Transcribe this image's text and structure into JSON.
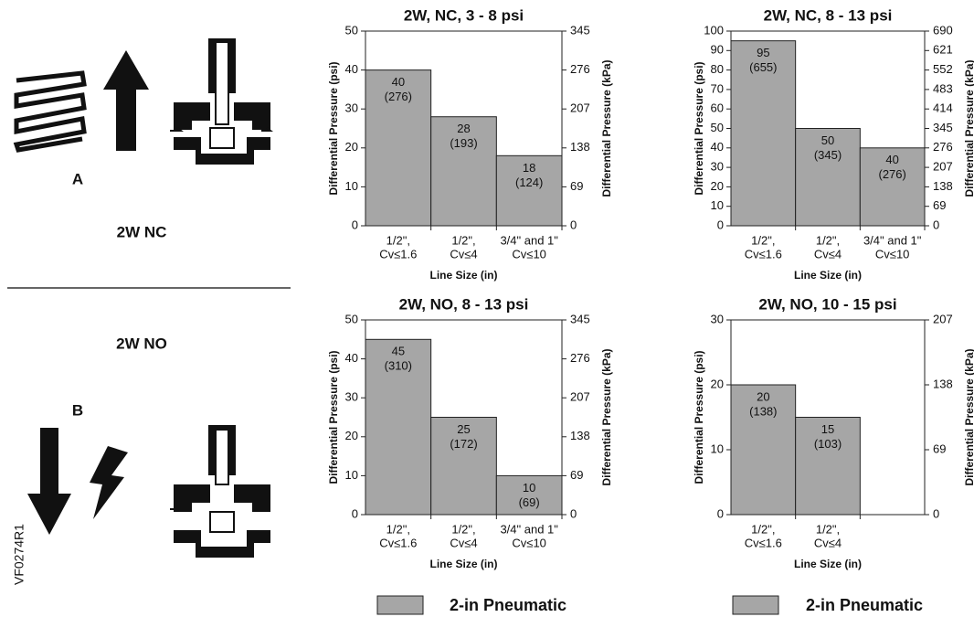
{
  "diagram": {
    "label_a": "A",
    "label_b": "B",
    "nc_title": "2W NC",
    "no_title": "2W NO",
    "figure_id": "VF0274R1"
  },
  "legends": [
    {
      "name": "2-in Pneumatic",
      "color": "#a6a6a6"
    },
    {
      "name": "2-in Pneumatic",
      "color": "#a6a6a6"
    }
  ],
  "chart_data": [
    {
      "type": "bar",
      "title": "2W, NC, 3 - 8 psi",
      "xlabel": "Line Size (in)",
      "ylabel": "Differential Pressure (psi)",
      "y2label": "Differential Pressure (kPa)",
      "categories": [
        [
          "1/2\",",
          "Cv≤1.6"
        ],
        [
          "1/2\",",
          "Cv≤4"
        ],
        [
          "3/4\" and 1\"",
          "Cv≤10"
        ]
      ],
      "values": [
        40,
        28,
        18
      ],
      "value_labels": [
        [
          "40",
          "(276)"
        ],
        [
          "28",
          "(193)"
        ],
        [
          "18",
          "(124)"
        ]
      ],
      "color": "#a6a6a6",
      "ylim": [
        0,
        50
      ],
      "yticks": [
        0,
        10,
        20,
        30,
        40,
        50
      ],
      "y2lim": [
        0,
        345
      ],
      "y2ticks": [
        0,
        69,
        138,
        207,
        276,
        345
      ]
    },
    {
      "type": "bar",
      "title": "2W, NC, 8 - 13 psi",
      "xlabel": "Line Size (in)",
      "ylabel": "Differential Pressure (psi)",
      "y2label": "Differential Pressure (kPa)",
      "categories": [
        [
          "1/2\",",
          "Cv≤1.6"
        ],
        [
          "1/2\",",
          "Cv≤4"
        ],
        [
          "3/4\" and 1\"",
          "Cv≤10"
        ]
      ],
      "values": [
        95,
        50,
        40
      ],
      "value_labels": [
        [
          "95",
          "(655)"
        ],
        [
          "50",
          "(345)"
        ],
        [
          "40",
          "(276)"
        ]
      ],
      "color": "#a6a6a6",
      "ylim": [
        0,
        100
      ],
      "yticks": [
        0,
        10,
        20,
        30,
        40,
        50,
        60,
        70,
        80,
        90,
        100
      ],
      "y2lim": [
        0,
        690
      ],
      "y2ticks": [
        0,
        69,
        138,
        207,
        276,
        345,
        414,
        483,
        552,
        621,
        690
      ]
    },
    {
      "type": "bar",
      "title": "2W, NO, 8 - 13 psi",
      "xlabel": "Line Size (in)",
      "ylabel": "Differential Pressure (psi)",
      "y2label": "Differential Pressure (kPa)",
      "categories": [
        [
          "1/2\",",
          "Cv≤1.6"
        ],
        [
          "1/2\",",
          "Cv≤4"
        ],
        [
          "3/4\" and 1\"",
          "Cv≤10"
        ]
      ],
      "values": [
        45,
        25,
        10
      ],
      "value_labels": [
        [
          "45",
          "(310)"
        ],
        [
          "25",
          "(172)"
        ],
        [
          "10",
          "(69)"
        ]
      ],
      "color": "#a6a6a6",
      "ylim": [
        0,
        50
      ],
      "yticks": [
        0,
        10,
        20,
        30,
        40,
        50
      ],
      "y2lim": [
        0,
        345
      ],
      "y2ticks": [
        0,
        69,
        138,
        207,
        276,
        345
      ]
    },
    {
      "type": "bar",
      "title": "2W, NO, 10 - 15 psi",
      "xlabel": "Line Size (in)",
      "ylabel": "Differential Pressure (psi)",
      "y2label": "Differential Pressure (kPa)",
      "categories": [
        [
          "1/2\",",
          "Cv≤1.6"
        ],
        [
          "1/2\",",
          "Cv≤4"
        ],
        null
      ],
      "values": [
        20,
        15,
        null
      ],
      "value_labels": [
        [
          "20",
          "(138)"
        ],
        [
          "15",
          "(103)"
        ],
        null
      ],
      "color": "#a6a6a6",
      "ylim": [
        0,
        30
      ],
      "yticks": [
        0,
        10,
        20,
        30
      ],
      "y2lim": [
        0,
        207
      ],
      "y2ticks": [
        0,
        69,
        138,
        207
      ]
    }
  ]
}
